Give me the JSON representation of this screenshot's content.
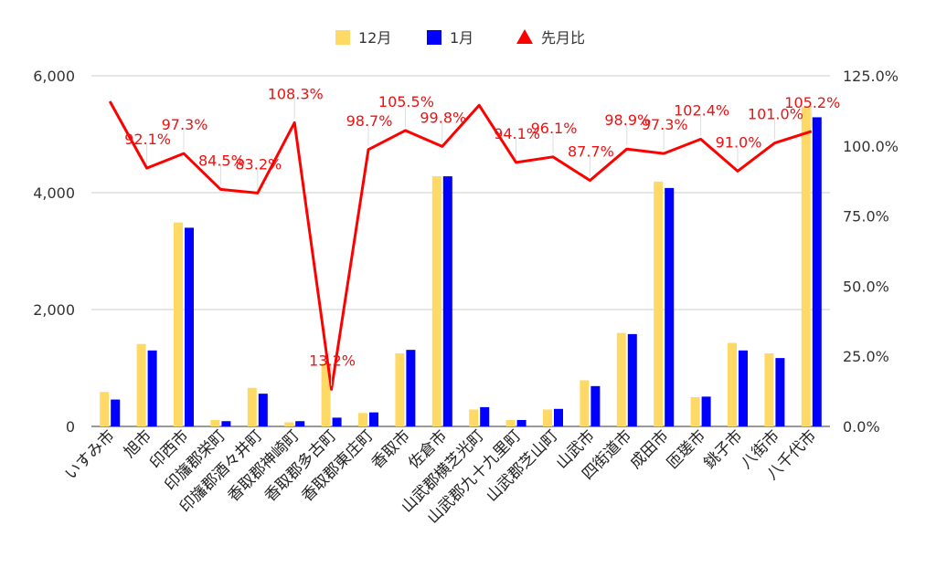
{
  "chart_data": {
    "type": "bar",
    "categories": [
      "いすみ市",
      "旭市",
      "印西市",
      "印旛郡栄町",
      "印旛郡酒々井町",
      "香取郡神崎町",
      "香取郡多古町",
      "香取郡東庄町",
      "香取市",
      "佐倉市",
      "山武郡横芝光町",
      "山武郡九十九里町",
      "山武郡芝山町",
      "山武市",
      "四街道市",
      "成田市",
      "匝瑳市",
      "銚子市",
      "八街市",
      "八千代市"
    ],
    "series": [
      {
        "name": "12月",
        "type": "bar",
        "axis": "left",
        "color": "#ffd966",
        "values": [
          590,
          1410,
          3490,
          110,
          660,
          70,
          1080,
          230,
          1250,
          4280,
          290,
          110,
          290,
          790,
          1600,
          4190,
          500,
          1430,
          1250,
          5460
        ]
      },
      {
        "name": "1月",
        "type": "bar",
        "axis": "left",
        "color": "#0000ff",
        "values": [
          460,
          1300,
          3400,
          90,
          560,
          90,
          150,
          240,
          1310,
          4280,
          330,
          110,
          300,
          690,
          1580,
          4080,
          510,
          1300,
          1170,
          5290
        ]
      },
      {
        "name": "先月比",
        "type": "line",
        "axis": "right",
        "color": "#ff0000",
        "values": [
          115.9,
          92.1,
          97.3,
          84.5,
          83.2,
          108.3,
          13.2,
          98.7,
          105.5,
          99.8,
          114.5,
          94.1,
          96.1,
          87.7,
          98.9,
          97.3,
          102.4,
          91.0,
          101.0,
          105.2
        ],
        "labels": [
          "",
          "92.1%",
          "97.3%",
          "84.5%",
          "83.2%",
          "108.3%",
          "13.2%",
          "98.7%",
          "105.5%",
          "99.8%",
          "",
          "94.1%",
          "96.1%",
          "87.7%",
          "98.9%",
          "97.3%",
          "102.4%",
          "91.0%",
          "101.0%",
          "105.2%"
        ]
      }
    ],
    "y_left": {
      "min": 0,
      "max": 6000,
      "ticks": [
        0,
        2000,
        4000,
        6000
      ],
      "tick_labels": [
        "0",
        "2,000",
        "4,000",
        "6,000"
      ]
    },
    "y_right": {
      "min": 0,
      "max": 125,
      "ticks": [
        0,
        25,
        50,
        75,
        100,
        125
      ],
      "tick_labels": [
        "0.0%",
        "25.0%",
        "50.0%",
        "75.0%",
        "100.0%",
        "125.0%"
      ]
    },
    "grid": true,
    "legend": "top-center",
    "title": "",
    "xlabel": "",
    "ylabel": ""
  }
}
